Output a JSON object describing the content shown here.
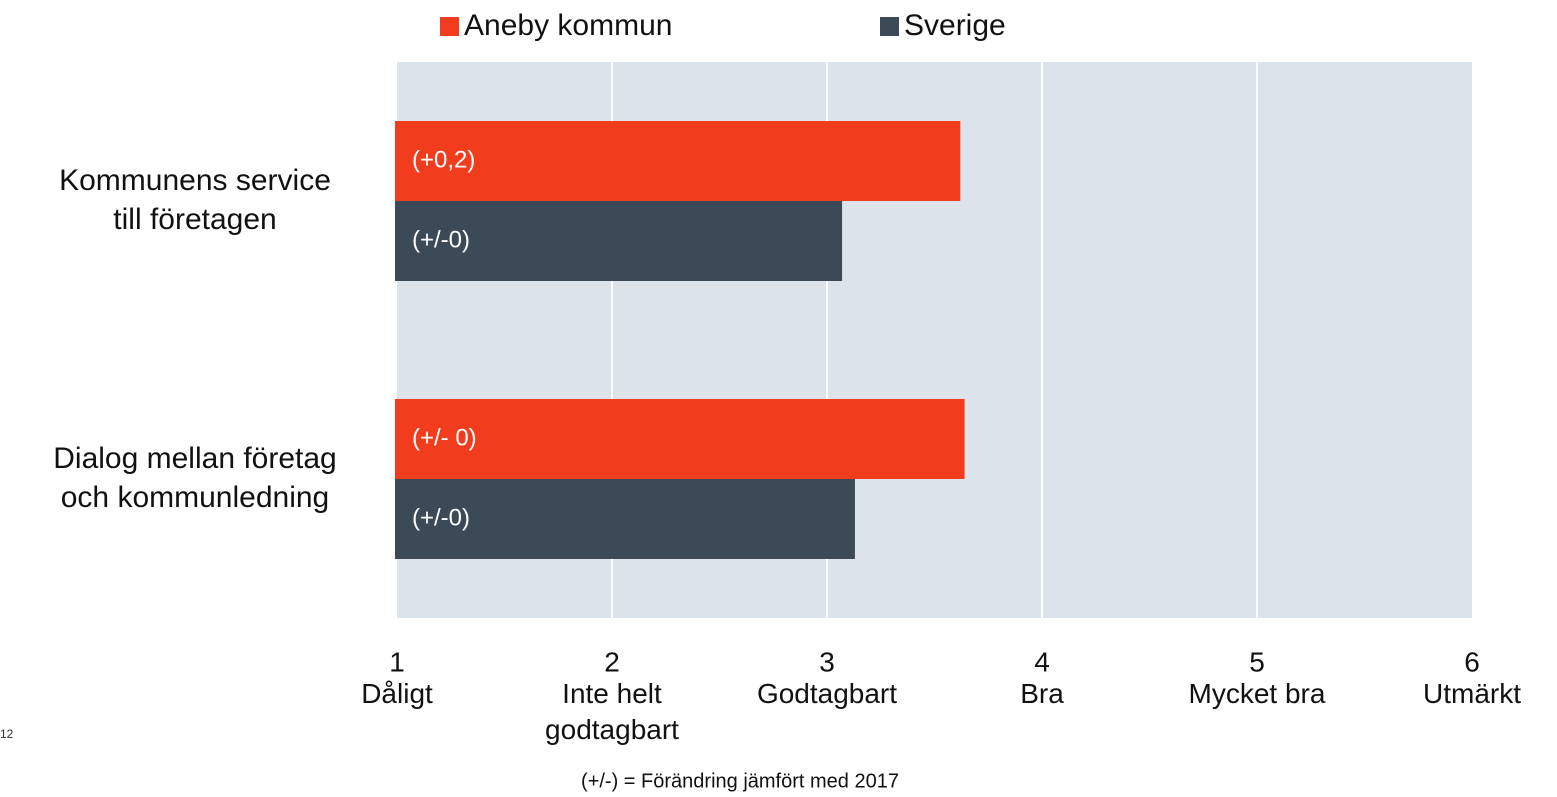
{
  "chart_data": {
    "type": "bar",
    "orientation": "horizontal",
    "categories": [
      "Kommunens service\ntill företagen",
      "Dialog mellan företag\noch kommunledning"
    ],
    "series": [
      {
        "name": "Aneby kommun",
        "color": "#f23c1e",
        "values": [
          3.62,
          3.64
        ],
        "change_labels": [
          "(+0,2)",
          "(+/- 0)"
        ]
      },
      {
        "name": "Sverige",
        "color": "#3c4a57",
        "values": [
          3.07,
          3.13
        ],
        "change_labels": [
          "(+/-0)",
          "(+/-0)"
        ]
      }
    ],
    "xlim": [
      1,
      6
    ],
    "xticks": [
      1,
      2,
      3,
      4,
      5,
      6
    ],
    "xtick_names": [
      "Dåligt",
      "Inte helt\ngodtagbart",
      "Godtagbart",
      "Bra",
      "Mycket bra",
      "Utmärkt"
    ],
    "grid": true,
    "plot_background": "#dce3ea",
    "footnote": "(+/-) = Förändring jämfört med 2017",
    "page_number": "12"
  }
}
